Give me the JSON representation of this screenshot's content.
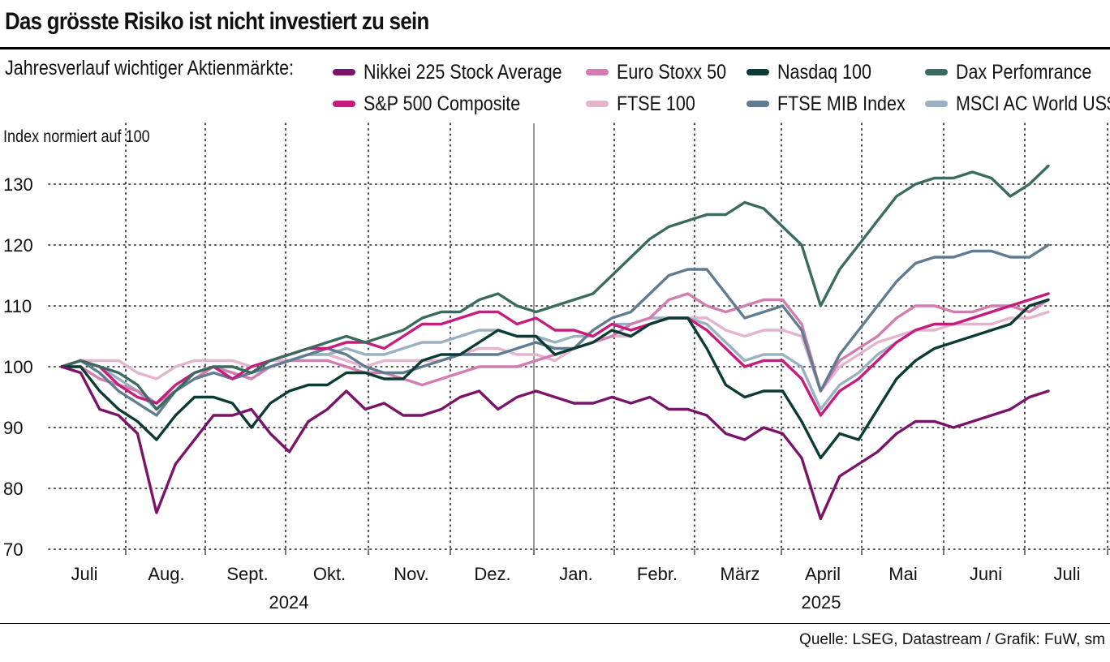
{
  "title": "Das grösste Risiko ist nicht investiert zu sein",
  "legend_title": "Jahresverlauf wichtiger Aktienmärkte:",
  "y_axis_label": "Index normiert auf 100",
  "source": "Quelle: LSEG, Datastream / Grafik: FuW, sm",
  "colors": {
    "nikkei": "#7b1469",
    "sp500": "#c81b7e",
    "eurostoxx": "#d27cb0",
    "ftse100": "#e4b4cd",
    "nasdaq": "#0c3b34",
    "ftsemib": "#5f7c90",
    "dax": "#3b6b5f",
    "msci": "#9ab1c1"
  },
  "chart_data": {
    "type": "line",
    "title": "Das grösste Risiko ist nicht investiert zu sein",
    "xlabel": "",
    "ylabel": "Index normiert auf 100",
    "ylim": [
      70,
      135
    ],
    "yticks": [
      70,
      80,
      90,
      100,
      110,
      120,
      130
    ],
    "grid": true,
    "legend_position": "top",
    "x": [
      "Jul 1",
      "Jul 8",
      "Jul 15",
      "Jul 22",
      "Jul 29",
      "Aug 5",
      "Aug 12",
      "Aug 19",
      "Aug 26",
      "Sep 2",
      "Sep 9",
      "Sep 16",
      "Sep 23",
      "Sep 30",
      "Oct 7",
      "Oct 14",
      "Oct 21",
      "Oct 28",
      "Nov 4",
      "Nov 11",
      "Nov 18",
      "Nov 25",
      "Dec 2",
      "Dec 9",
      "Dec 16",
      "Dec 23",
      "Dec 30",
      "Jan 6",
      "Jan 13",
      "Jan 20",
      "Jan 27",
      "Feb 3",
      "Feb 10",
      "Feb 17",
      "Feb 24",
      "Mar 3",
      "Mar 10",
      "Mar 17",
      "Mar 24",
      "Mar 31",
      "Apr 7",
      "Apr 14",
      "Apr 21",
      "Apr 28",
      "May 5",
      "May 12",
      "May 19",
      "May 26",
      "Jun 2",
      "Jun 9",
      "Jun 16",
      "Jun 23",
      "Jun 30"
    ],
    "x_month_labels": [
      "Juli",
      "Aug.",
      "Sept.",
      "Okt.",
      "Nov.",
      "Dez.",
      "Jan.",
      "Febr.",
      "März",
      "April",
      "Mai",
      "Juni",
      "Juli"
    ],
    "year_labels": [
      "2024",
      "2025"
    ],
    "series": [
      {
        "key": "nikkei",
        "name": "Nikkei 225 Stock Average",
        "values": [
          100,
          99,
          93,
          92,
          89,
          76,
          84,
          88,
          92,
          92,
          93,
          89,
          86,
          91,
          93,
          96,
          93,
          94,
          92,
          92,
          93,
          95,
          96,
          93,
          95,
          96,
          95,
          94,
          94,
          95,
          94,
          95,
          93,
          93,
          92,
          89,
          88,
          90,
          89,
          85,
          75,
          82,
          84,
          86,
          89,
          91,
          91,
          90,
          91,
          92,
          93,
          95,
          96
        ]
      },
      {
        "key": "sp500",
        "name": "S&P 500 Composite",
        "values": [
          100,
          101,
          100,
          97,
          95,
          94,
          97,
          99,
          100,
          98,
          100,
          101,
          102,
          103,
          103,
          104,
          104,
          103,
          105,
          107,
          107,
          108,
          109,
          109,
          107,
          108,
          106,
          106,
          105,
          107,
          106,
          107,
          108,
          108,
          106,
          103,
          100,
          101,
          101,
          98,
          92,
          96,
          98,
          101,
          104,
          106,
          107,
          107,
          108,
          109,
          110,
          111,
          112
        ]
      },
      {
        "key": "eurostoxx",
        "name": "Euro Stoxx 50",
        "values": [
          100,
          100,
          98,
          97,
          96,
          94,
          96,
          98,
          100,
          99,
          98,
          100,
          101,
          101,
          101,
          100,
          99,
          99,
          98,
          97,
          98,
          99,
          100,
          100,
          100,
          101,
          102,
          103,
          104,
          105,
          107,
          108,
          111,
          112,
          110,
          109,
          110,
          111,
          111,
          107,
          96,
          101,
          103,
          105,
          108,
          110,
          110,
          109,
          109,
          110,
          110,
          109,
          111
        ]
      },
      {
        "key": "ftse100",
        "name": "FTSE 100",
        "values": [
          100,
          101,
          101,
          101,
          99,
          98,
          100,
          101,
          101,
          101,
          100,
          101,
          101,
          102,
          102,
          101,
          100,
          101,
          101,
          101,
          101,
          102,
          103,
          103,
          102,
          102,
          101,
          103,
          104,
          105,
          105,
          107,
          108,
          108,
          108,
          106,
          105,
          106,
          106,
          105,
          96,
          100,
          102,
          104,
          105,
          106,
          106,
          107,
          107,
          107,
          108,
          108,
          109
        ]
      },
      {
        "key": "nasdaq",
        "name": "Nasdaq 100",
        "values": [
          100,
          100,
          96,
          93,
          91,
          88,
          92,
          95,
          95,
          94,
          90,
          94,
          96,
          97,
          97,
          99,
          99,
          98,
          98,
          101,
          102,
          102,
          104,
          106,
          105,
          105,
          102,
          103,
          104,
          106,
          105,
          107,
          108,
          108,
          103,
          97,
          95,
          96,
          96,
          91,
          85,
          89,
          88,
          93,
          98,
          101,
          103,
          104,
          105,
          106,
          107,
          110,
          111
        ]
      },
      {
        "key": "ftsemib",
        "name": "FTSE MIB Index",
        "values": [
          100,
          101,
          99,
          96,
          94,
          92,
          96,
          98,
          99,
          98,
          99,
          100,
          101,
          102,
          103,
          102,
          100,
          99,
          99,
          100,
          101,
          102,
          102,
          102,
          103,
          104,
          103,
          103,
          106,
          108,
          109,
          112,
          115,
          116,
          116,
          112,
          108,
          109,
          110,
          106,
          96,
          102,
          106,
          110,
          114,
          117,
          118,
          118,
          119,
          119,
          118,
          118,
          120
        ]
      },
      {
        "key": "dax",
        "name": "Dax Perfomrance",
        "values": [
          100,
          101,
          100,
          99,
          97,
          93,
          96,
          99,
          100,
          100,
          99,
          101,
          102,
          103,
          104,
          105,
          104,
          105,
          106,
          108,
          109,
          109,
          111,
          112,
          110,
          109,
          110,
          111,
          112,
          115,
          118,
          121,
          123,
          124,
          125,
          125,
          127,
          126,
          123,
          120,
          110,
          116,
          120,
          124,
          128,
          130,
          131,
          131,
          132,
          131,
          128,
          130,
          133
        ]
      },
      {
        "key": "msci",
        "name": "MSCI AC World US$",
        "values": [
          100,
          101,
          100,
          98,
          96,
          93,
          96,
          98,
          100,
          99,
          98,
          100,
          101,
          102,
          102,
          103,
          102,
          102,
          103,
          104,
          104,
          105,
          106,
          106,
          105,
          105,
          104,
          105,
          105,
          107,
          107,
          108,
          108,
          108,
          107,
          104,
          101,
          102,
          102,
          100,
          93,
          97,
          99,
          102,
          104,
          106,
          107,
          107,
          108,
          109,
          110,
          111,
          112
        ]
      }
    ]
  }
}
